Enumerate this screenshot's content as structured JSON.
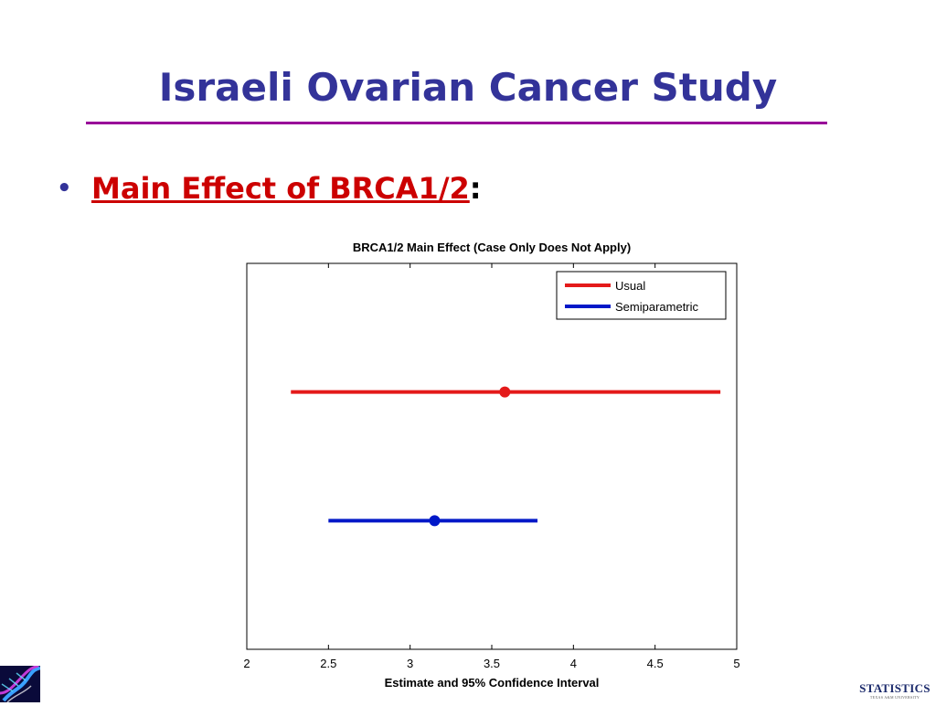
{
  "slide": {
    "title": "Israeli Ovarian Cancer Study",
    "bullet": {
      "text": "Main Effect of BRCA1/2",
      "suffix": ":"
    },
    "logo_right": {
      "word": "STATISTICS",
      "sub": "TEXAS A&M UNIVERSITY"
    }
  },
  "colors": {
    "title": "#333399",
    "rule": "#990099",
    "bullet": "#cc0000",
    "usual": "#e41a1a",
    "semiparametric": "#0018c8"
  },
  "icons": {
    "left_logo": "dna-helix-icon"
  },
  "chart_data": {
    "type": "errorbar",
    "title": "BRCA1/2 Main Effect (Case Only Does Not Apply)",
    "xlabel": "Estimate and 95% Confidence Interval",
    "ylabel": "",
    "xlim": [
      2,
      5
    ],
    "xticks": [
      "2",
      "2.5",
      "3",
      "3.5",
      "4",
      "4.5",
      "5"
    ],
    "legend_position": "top-right",
    "grid": false,
    "series": [
      {
        "name": "Usual",
        "estimate": 3.58,
        "lower": 2.27,
        "upper": 4.9,
        "color": "#e41a1a"
      },
      {
        "name": "Semiparametric",
        "estimate": 3.15,
        "lower": 2.5,
        "upper": 3.78,
        "color": "#0018c8"
      }
    ]
  }
}
